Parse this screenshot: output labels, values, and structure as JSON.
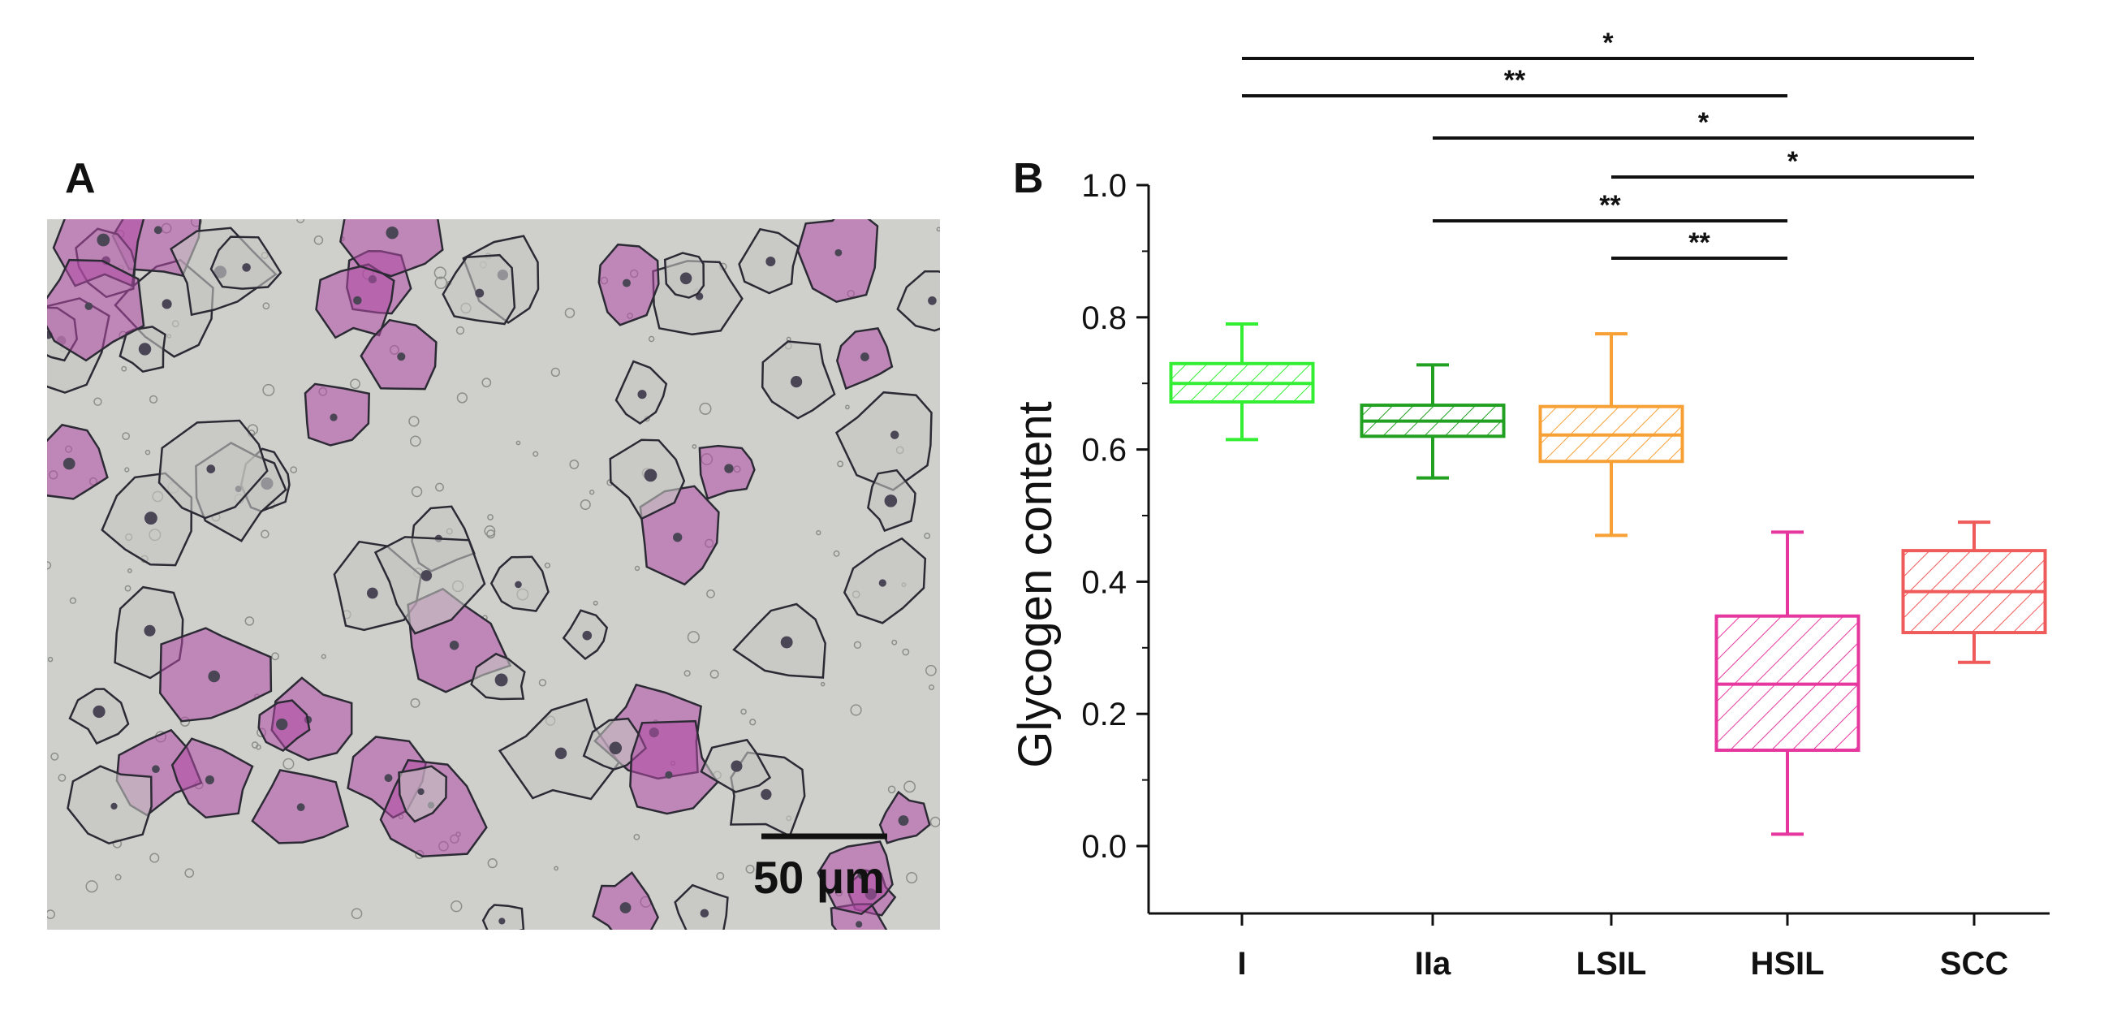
{
  "panels": {
    "a_label": "A",
    "b_label": "B"
  },
  "micrograph": {
    "scale_bar_label": "50 μm",
    "stain_color": "#b14aa6",
    "background_color": "#cfd0cc"
  },
  "chart_data": {
    "type": "box",
    "title": "",
    "xlabel": "",
    "ylabel": "Glycogen content",
    "ylim": [
      -0.1,
      1.0
    ],
    "yticks": [
      0.0,
      0.2,
      0.4,
      0.6,
      0.8,
      1.0
    ],
    "ytick_labels": [
      "0.0",
      "0.2",
      "0.4",
      "0.6",
      "0.8",
      "1.0"
    ],
    "categories": [
      "I",
      "IIa",
      "LSIL",
      "HSIL",
      "SCC"
    ],
    "series": [
      {
        "category": "I",
        "color": "#33ee33",
        "whisker_low": 0.615,
        "q1": 0.672,
        "median": 0.7,
        "q3": 0.73,
        "whisker_high": 0.79
      },
      {
        "category": "IIa",
        "color": "#22a022",
        "whisker_low": 0.557,
        "q1": 0.62,
        "median": 0.643,
        "q3": 0.667,
        "whisker_high": 0.728
      },
      {
        "category": "LSIL",
        "color": "#f7a035",
        "whisker_low": 0.47,
        "q1": 0.582,
        "median": 0.622,
        "q3": 0.665,
        "whisker_high": 0.775
      },
      {
        "category": "HSIL",
        "color": "#e6379f",
        "whisker_low": 0.018,
        "q1": 0.145,
        "median": 0.245,
        "q3": 0.348,
        "whisker_high": 0.475
      },
      {
        "category": "SCC",
        "color": "#ef5a5a",
        "whisker_low": 0.278,
        "q1": 0.323,
        "median": 0.385,
        "q3": 0.447,
        "whisker_high": 0.49
      }
    ],
    "significance": [
      {
        "from": "I",
        "to": "SCC",
        "label": "*"
      },
      {
        "from": "I",
        "to": "HSIL",
        "label": "**"
      },
      {
        "from": "IIa",
        "to": "SCC",
        "label": "*"
      },
      {
        "from": "LSIL",
        "to": "SCC",
        "label": "*"
      },
      {
        "from": "IIa",
        "to": "HSIL",
        "label": "**"
      },
      {
        "from": "LSIL",
        "to": "HSIL",
        "label": "**"
      }
    ]
  }
}
